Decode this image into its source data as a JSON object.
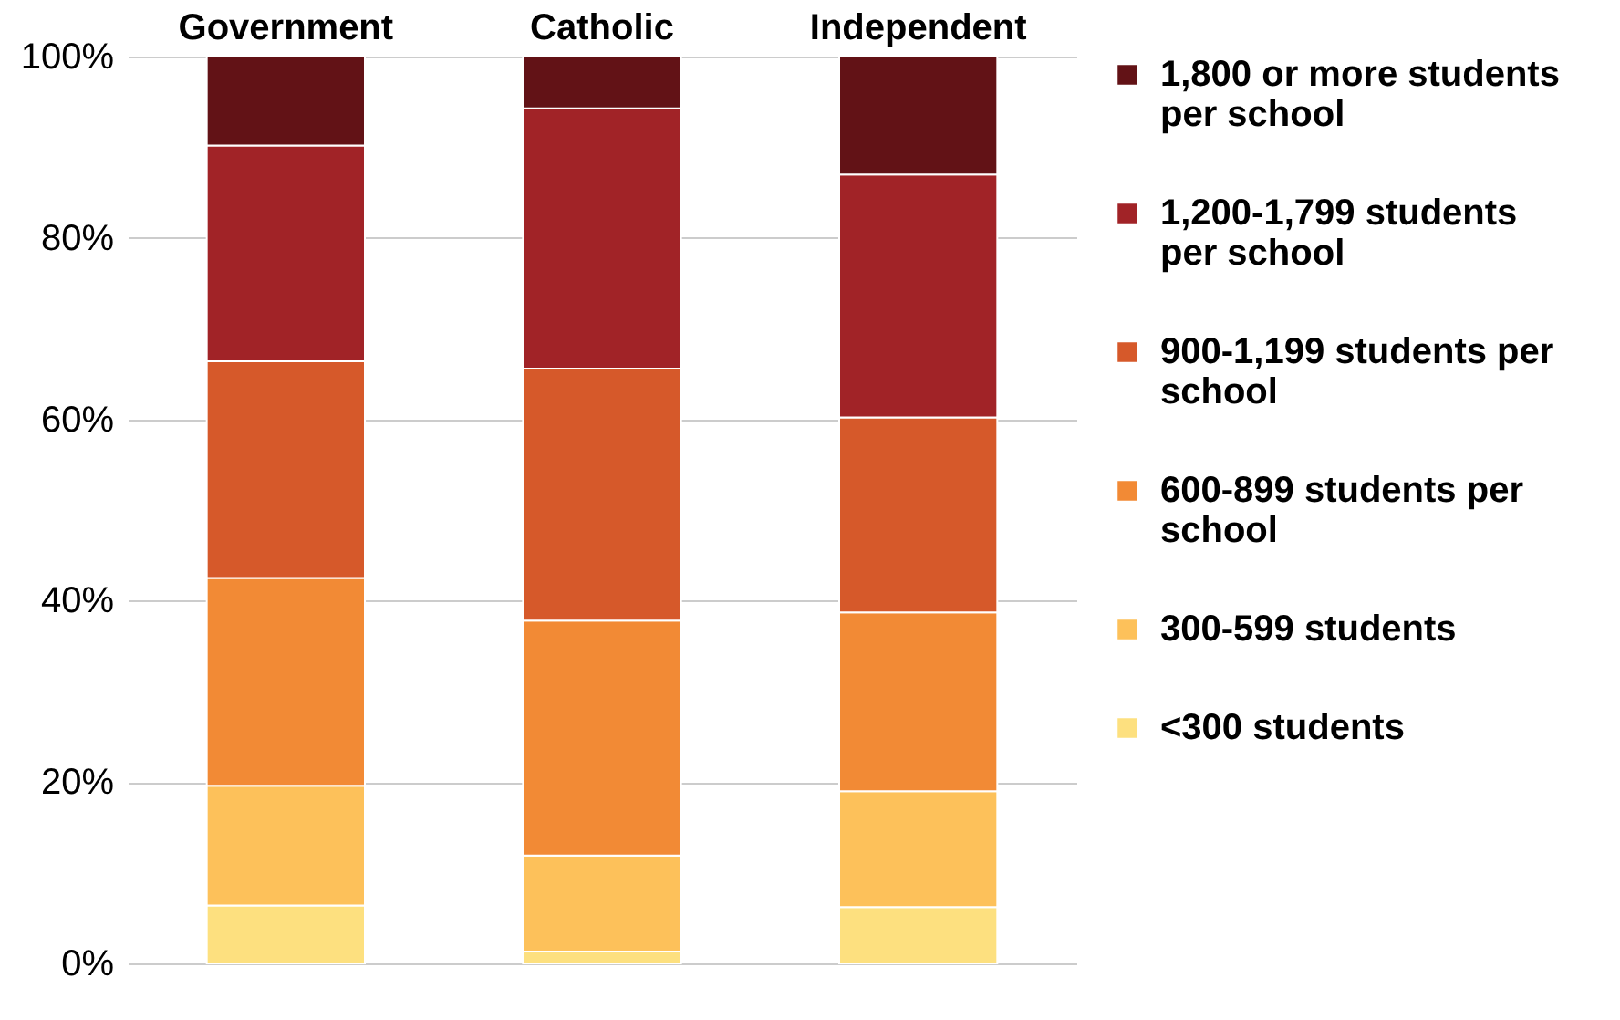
{
  "chart_data": {
    "type": "bar",
    "stacked": true,
    "categories": [
      "Government",
      "Catholic",
      "Independent"
    ],
    "series": [
      {
        "name": "<300 students",
        "color": "#fde07f",
        "values": [
          6.4,
          1.3,
          6.2
        ]
      },
      {
        "name": "300-599 students",
        "color": "#fdc15a",
        "values": [
          13.2,
          10.6,
          12.8
        ]
      },
      {
        "name": "600-899 students per school",
        "color": "#f28a35",
        "values": [
          22.9,
          25.9,
          19.7
        ]
      },
      {
        "name": "900-1,199 students per school",
        "color": "#d6592a",
        "values": [
          23.9,
          27.8,
          21.5
        ]
      },
      {
        "name": "1,200-1,799 students per school",
        "color": "#a12327",
        "values": [
          23.8,
          28.7,
          26.8
        ]
      },
      {
        "name": "1,800 or more students per school",
        "color": "#621216",
        "values": [
          9.8,
          5.7,
          13.0
        ]
      }
    ],
    "ylim": [
      0,
      100
    ],
    "yticks": [
      {
        "value": 0,
        "label": "0%"
      },
      {
        "value": 20,
        "label": "20%"
      },
      {
        "value": 40,
        "label": "40%"
      },
      {
        "value": 60,
        "label": "60%"
      },
      {
        "value": 80,
        "label": "80%"
      },
      {
        "value": 100,
        "label": "100%"
      }
    ],
    "grid": "y",
    "legend": "right"
  }
}
